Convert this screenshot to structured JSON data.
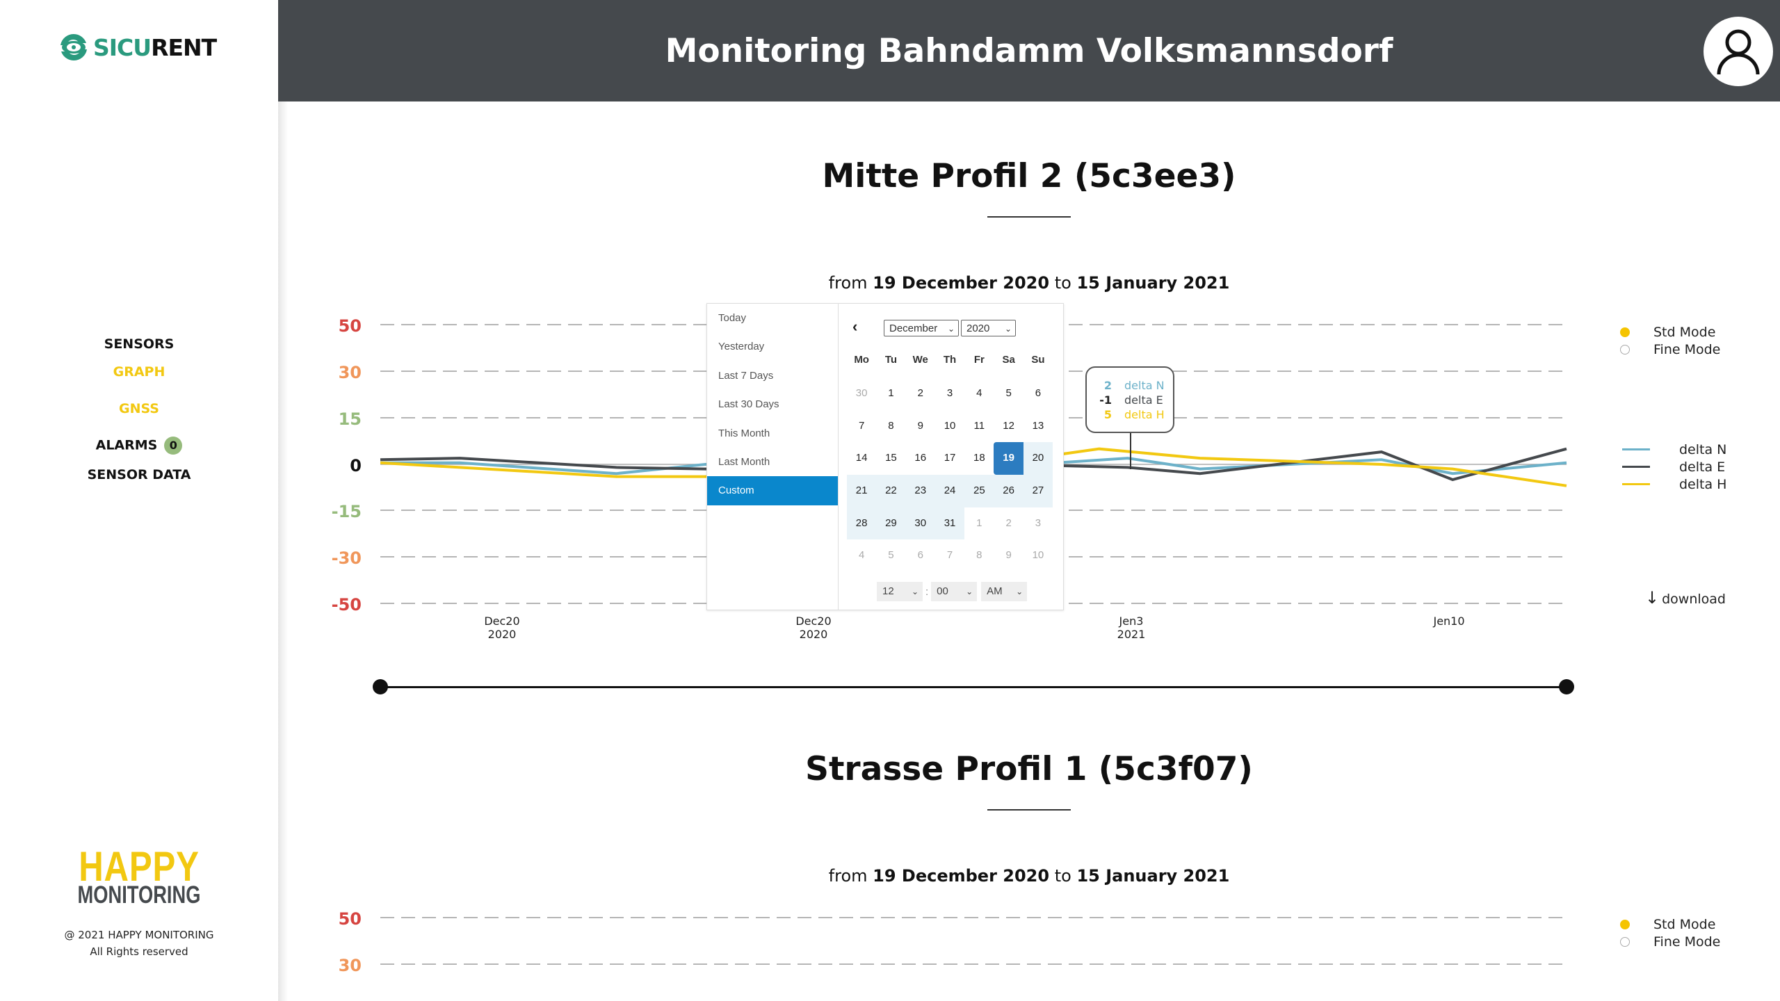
{
  "brand": {
    "logo_part1": "SICU",
    "logo_part2": "RENT",
    "primary_color": "#2a9a7e"
  },
  "header": {
    "title": "Monitoring Bahndamm Volksmannsdorf",
    "background": "#45494d"
  },
  "sidebar": {
    "items": [
      {
        "label": "SENSORS",
        "color": "black"
      },
      {
        "label": "GRAPH",
        "color": "yellow"
      },
      {
        "label": "GNSS",
        "color": "yellow"
      },
      {
        "label": "ALARMS",
        "color": "black",
        "badge": "0"
      },
      {
        "label": "SENSOR DATA",
        "color": "black"
      }
    ],
    "footer_logo_line1": "HAPPY",
    "footer_logo_line2": "MONITORING",
    "copyright_line1": "@ 2021 HAPPY MONITORING",
    "copyright_line2": "All Rights reserved"
  },
  "sections": [
    {
      "title": "Mitte Profil 2 (5c3ee3)",
      "range_from_word": "from",
      "range_from": "19 December 2020",
      "range_to_word": "to",
      "range_to": "15 January 2021"
    },
    {
      "title": "Strasse Profil 1 (5c3f07)",
      "range_from_word": "from",
      "range_from": "19 December 2020",
      "range_to_word": "to",
      "range_to": "15 January 2021"
    }
  ],
  "legend": {
    "modes": [
      {
        "label": "Std Mode",
        "selected": true
      },
      {
        "label": "Fine Mode",
        "selected": false
      }
    ],
    "series": [
      {
        "label": "delta N",
        "color": "#6cb1c9"
      },
      {
        "label": "delta E",
        "color": "#45494d"
      },
      {
        "label": "delta H",
        "color": "#f2c811"
      }
    ],
    "download_label": "download",
    "download_icon": "arrow-down-icon"
  },
  "tooltip": {
    "rows": [
      {
        "value": "2",
        "label": "delta N",
        "color": "#6cb1c9"
      },
      {
        "value": "-1",
        "label": "delta E",
        "color": "#45494d"
      },
      {
        "value": "5",
        "label": "delta H",
        "color": "#f2c811"
      }
    ]
  },
  "date_picker": {
    "ranges": [
      "Today",
      "Yesterday",
      "Last 7 Days",
      "Last 30 Days",
      "This Month",
      "Last Month",
      "Custom"
    ],
    "active_range": "Custom",
    "month": "December",
    "year": "2020",
    "weekdays": [
      "Mo",
      "Tu",
      "We",
      "Th",
      "Fr",
      "Sa",
      "Su"
    ],
    "weeks": [
      [
        "30",
        "1",
        "2",
        "3",
        "4",
        "5",
        "6"
      ],
      [
        "7",
        "8",
        "9",
        "10",
        "11",
        "12",
        "13"
      ],
      [
        "14",
        "15",
        "16",
        "17",
        "18",
        "19",
        "20"
      ],
      [
        "21",
        "22",
        "23",
        "24",
        "25",
        "26",
        "27"
      ],
      [
        "28",
        "29",
        "30",
        "31",
        "1",
        "2",
        "3"
      ],
      [
        "4",
        "5",
        "6",
        "7",
        "8",
        "9",
        "10"
      ]
    ],
    "selected_day": "19",
    "time": {
      "hour": "12",
      "minute": "00",
      "ampm": "AM"
    }
  },
  "chart_data": [
    {
      "type": "line",
      "title": "Mitte Profil 2 (5c3ee3)",
      "subtitle": "from 19 December 2020 to 15 January 2021",
      "yticks": [
        50,
        30,
        15,
        0,
        -15,
        -30,
        -50
      ],
      "ytick_colors": [
        "#d64541",
        "#f0965a",
        "#96bb7c",
        "#111111",
        "#96bb7c",
        "#f0965a",
        "#d64541"
      ],
      "y_scale": "piecewise (ticks evenly spaced)",
      "xticks": [
        {
          "label": "Dec20",
          "sub": "2020",
          "x": 0.102
        },
        {
          "label": "Dec20",
          "sub": "2020",
          "x": 0.365
        },
        {
          "label": "Jen3",
          "sub": "2021",
          "x": 0.633
        },
        {
          "label": "Jen10",
          "sub": "",
          "x": 0.902
        }
      ],
      "grid": "dashed horizontal",
      "legend_position": "right",
      "series": [
        {
          "name": "delta N",
          "color": "#6cb1c9",
          "points": [
            [
              0,
              0.5
            ],
            [
              0.067,
              0.5
            ],
            [
              0.199,
              -3
            ],
            [
              0.274,
              0
            ],
            [
              0.55,
              0
            ],
            [
              0.63,
              2
            ],
            [
              0.691,
              -1.5
            ],
            [
              0.844,
              1.5
            ],
            [
              0.904,
              -3
            ],
            [
              1,
              0.5
            ]
          ]
        },
        {
          "name": "delta E",
          "color": "#45494d",
          "points": [
            [
              0,
              1.5
            ],
            [
              0.067,
              2
            ],
            [
              0.199,
              -1
            ],
            [
              0.274,
              -1.5
            ],
            [
              0.55,
              -0.2
            ],
            [
              0.63,
              -1
            ],
            [
              0.691,
              -3
            ],
            [
              0.844,
              4
            ],
            [
              0.904,
              -5
            ],
            [
              1,
              5
            ]
          ]
        },
        {
          "name": "delta H",
          "color": "#f2c811",
          "points": [
            [
              0,
              0.5
            ],
            [
              0.067,
              -1
            ],
            [
              0.199,
              -4
            ],
            [
              0.274,
              -4
            ],
            [
              0.55,
              2
            ],
            [
              0.606,
              5
            ],
            [
              0.691,
              2
            ],
            [
              0.844,
              0
            ],
            [
              0.904,
              -1.5
            ],
            [
              1,
              -7
            ]
          ]
        }
      ]
    },
    {
      "type": "line",
      "title": "Strasse Profil 1 (5c3f07)",
      "subtitle": "from 19 December 2020 to 15 January 2021",
      "yticks": [
        50,
        30
      ],
      "series": []
    }
  ]
}
